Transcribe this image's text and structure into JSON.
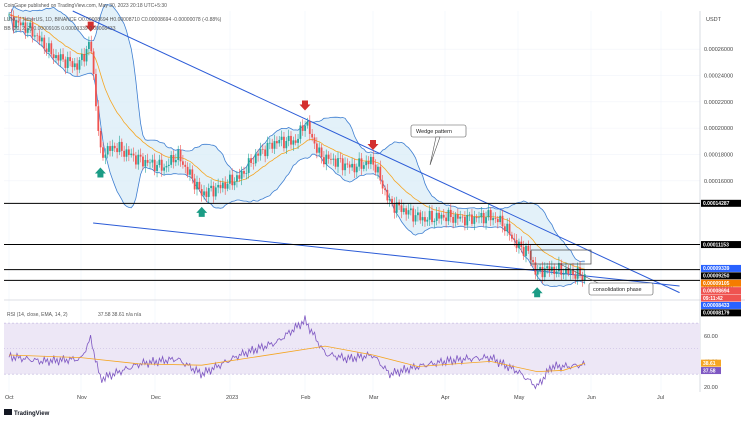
{
  "header": {
    "publisher": "CoinGape published on TradingView.com, May 30, 2023 20:18 UTC+5:30",
    "symbol_line": "LUNC / TetherUS, 1D, BINANCE  O0.00008694  H0.00008710  C0.00008694  -0.00000078 (-0.88%)",
    "bb_line": "BB (20, 2, 2)  0.00009105  0.00009339  0.00008433",
    "currency": "USDT"
  },
  "footer": {
    "brand": "TradingView"
  },
  "colors": {
    "bull": "#26a69a",
    "bear": "#ef5350",
    "trendline": "#2b5bd7",
    "bb_fill": "#d9ecf7",
    "bb_line": "#3f7fd1",
    "ema": "#f5a623",
    "rsi": "#7e57c2",
    "rsi_band": "#ede7f6",
    "level": "#000000"
  },
  "chart_data": [
    {
      "type": "candlestick",
      "title": "LUNC / TetherUS, 1D, BINANCE",
      "x_ticks": [
        "Oct",
        "Nov",
        "Dec",
        "2023",
        "Feb",
        "Mar",
        "Apr",
        "May",
        "Jun",
        "Jul"
      ],
      "y_ticks": [
        0.00026,
        0.00024,
        0.00022,
        0.0002,
        0.00018,
        0.00016,
        8e-05
      ],
      "ylim": [
        7.7e-05,
        0.000289
      ],
      "horizontal_levels": [
        0.00014287,
        0.00011153,
        9.25e-05,
        8.433e-05
      ],
      "price_labels": [
        {
          "text": "0.00014287",
          "value": 0.00014287,
          "color": "#000000"
        },
        {
          "text": "0.00011153",
          "value": 0.00011153,
          "color": "#000000"
        },
        {
          "text": "0.00009250",
          "value": 9.25e-05,
          "color": "#000000"
        },
        {
          "text": "0.00009339",
          "value": 9.339e-05,
          "color": "#2962ff"
        },
        {
          "text": "0.00009105",
          "value": 9.105e-05,
          "color": "#f57c00"
        },
        {
          "text": "0.00008694",
          "value": 8.694e-05,
          "color": "#ef5350"
        },
        {
          "text": "09:11:42",
          "value": 8.68e-05,
          "color": "#ef5350"
        },
        {
          "text": "0.00008433",
          "value": 8.433e-05,
          "color": "#2962ff"
        },
        {
          "text": "0.00008179",
          "value": 8.179e-05,
          "color": "#000000"
        }
      ],
      "annotations": [
        "Wedge pattern",
        "consolidation phase"
      ],
      "red_arrow_dates": [
        "Nov 05",
        "Feb 01",
        "Mar 01"
      ],
      "green_arrow_dates": [
        "Nov 09",
        "Dec 20",
        "May 09"
      ],
      "resistance_trendline": {
        "from": [
          "Oct 28",
          0.000289
        ],
        "to": [
          "Jun 30",
          7.5e-05
        ]
      },
      "support_trendline": {
        "from": [
          "Nov 06",
          0.0001279
        ],
        "to": [
          "Jun 30",
          8e-05
        ]
      },
      "price_path": [
        [
          "Oct 01",
          0.000283
        ],
        [
          "Oct 10",
          0.000275
        ],
        [
          "Oct 20",
          0.000255
        ],
        [
          "Oct 30",
          0.000247
        ],
        [
          "Nov 05",
          0.000265
        ],
        [
          "Nov 09",
          0.00018
        ],
        [
          "Nov 15",
          0.000186
        ],
        [
          "Nov 25",
          0.000176
        ],
        [
          "Dec 05",
          0.00017
        ],
        [
          "Dec 10",
          0.00018
        ],
        [
          "Dec 20",
          0.00015
        ],
        [
          "Dec 27",
          0.000155
        ],
        [
          "Jan 05",
          0.000163
        ],
        [
          "Jan 12",
          0.00018
        ],
        [
          "Jan 20",
          0.00019
        ],
        [
          "Jan 28",
          0.00019
        ],
        [
          "Feb 01",
          0.000205
        ],
        [
          "Feb 08",
          0.000178
        ],
        [
          "Feb 15",
          0.000175
        ],
        [
          "Feb 22",
          0.00017
        ],
        [
          "Mar 01",
          0.000175
        ],
        [
          "Mar 08",
          0.000143
        ],
        [
          "Mar 15",
          0.000137
        ],
        [
          "Mar 22",
          0.000131
        ],
        [
          "Apr 01",
          0.000133
        ],
        [
          "Apr 10",
          0.000131
        ],
        [
          "Apr 20",
          0.000133
        ],
        [
          "Apr 25",
          0.000128
        ],
        [
          "May 01",
          0.00011
        ],
        [
          "May 05",
          0.000107
        ],
        [
          "May 09",
          8.9e-05
        ],
        [
          "May 12",
          9.3e-05
        ],
        [
          "May 18",
          9.2e-05
        ],
        [
          "May 24",
          9e-05
        ],
        [
          "May 29",
          8.7e-05
        ]
      ]
    },
    {
      "type": "line",
      "title": "RSI (14, close, EMA, 14, 2)",
      "header_values": "37.58  38.61  n/a  n/a",
      "y_ticks": [
        60.0,
        40.0,
        20.0
      ],
      "ylim": [
        16,
        74
      ],
      "band": [
        30,
        70
      ],
      "series": [
        {
          "name": "RSI",
          "values": [
            [
              "Oct 01",
              44
            ],
            [
              "Oct 15",
              40
            ],
            [
              "Nov 01",
              42
            ],
            [
              "Nov 05",
              58
            ],
            [
              "Nov 09",
              26
            ],
            [
              "Nov 25",
              38
            ],
            [
              "Dec 10",
              42
            ],
            [
              "Dec 20",
              30
            ],
            [
              "Jan 05",
              45
            ],
            [
              "Jan 20",
              55
            ],
            [
              "Feb 01",
              72
            ],
            [
              "Feb 10",
              46
            ],
            [
              "Feb 20",
              42
            ],
            [
              "Mar 01",
              45
            ],
            [
              "Mar 08",
              30
            ],
            [
              "Mar 20",
              36
            ],
            [
              "Apr 01",
              40
            ],
            [
              "Apr 10",
              42
            ],
            [
              "Apr 20",
              43
            ],
            [
              "Apr 25",
              38
            ],
            [
              "May 01",
              32
            ],
            [
              "May 09",
              20
            ],
            [
              "May 15",
              36
            ],
            [
              "May 22",
              36
            ],
            [
              "May 29",
              37.58
            ]
          ]
        },
        {
          "name": "RSI-based MA",
          "values": [
            [
              "Oct 01",
              45
            ],
            [
              "Nov 01",
              43
            ],
            [
              "Nov 25",
              38
            ],
            [
              "Dec 20",
              37
            ],
            [
              "Jan 20",
              46
            ],
            [
              "Feb 10",
              52
            ],
            [
              "Mar 01",
              45
            ],
            [
              "Mar 20",
              36
            ],
            [
              "Apr 20",
              40
            ],
            [
              "May 09",
              32
            ],
            [
              "May 20",
              33
            ],
            [
              "May 29",
              38.61
            ]
          ]
        }
      ]
    }
  ]
}
